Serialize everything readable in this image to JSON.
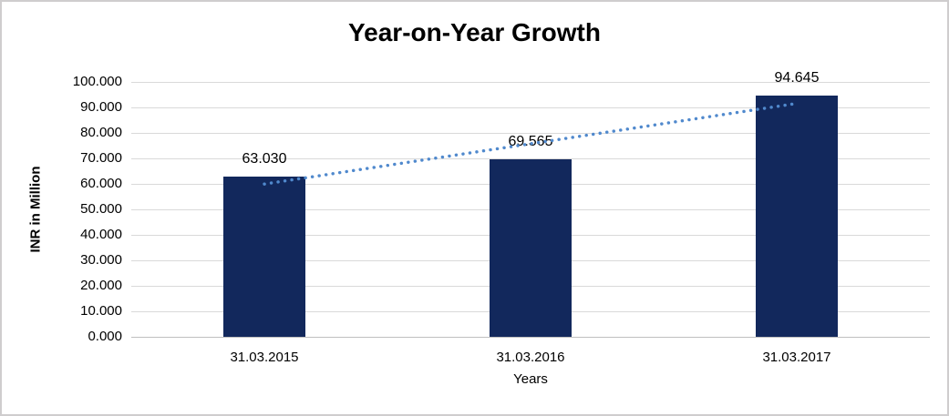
{
  "chart_data": {
    "type": "bar",
    "title": "Year-on-Year Growth",
    "categories": [
      "31.03.2015",
      "31.03.2016",
      "31.03.2017"
    ],
    "values": [
      63.03,
      69.565,
      94.645
    ],
    "data_labels": [
      "63.030",
      "69.565",
      "94.645"
    ],
    "xlabel": "Years",
    "ylabel": "INR in Million",
    "ylim": [
      0,
      100
    ],
    "ytick_step": 10,
    "ytick_labels": [
      "0.000",
      "10.000",
      "20.000",
      "30.000",
      "40.000",
      "50.000",
      "60.000",
      "70.000",
      "80.000",
      "90.000",
      "100.000"
    ],
    "grid": "horizontal",
    "legend": "none",
    "trendline": {
      "type": "linear",
      "style": "dotted",
      "color": "#5089CD"
    },
    "colors": {
      "bar": "#12285C",
      "gridline": "#D9D9D9",
      "axis_line": "#BFBFBF",
      "text": "#000000",
      "canvas_border": "#CFCDCE",
      "background": "#FFFFFF"
    }
  }
}
